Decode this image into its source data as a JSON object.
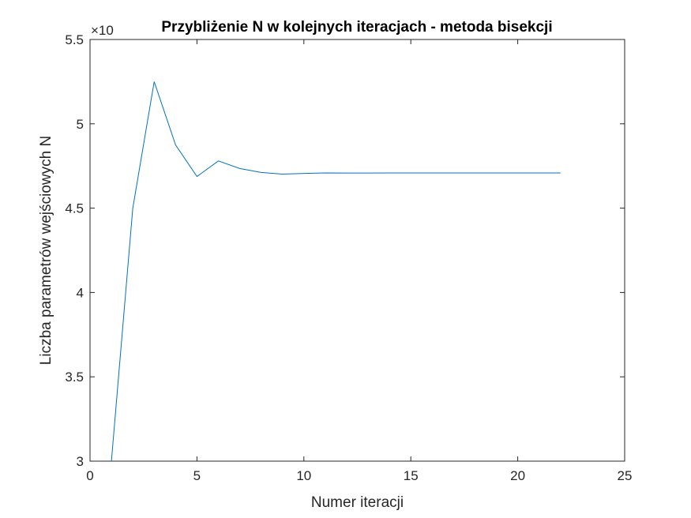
{
  "chart_data": {
    "type": "line",
    "title": "Przybliżenie N w kolejnych iteracjach - metoda bisekcji",
    "xlabel": "Numer iteracji",
    "ylabel": "Liczba parametrów wejściowych N",
    "y_multiplier_label": "×10",
    "xlim": [
      0,
      25
    ],
    "ylim": [
      3,
      5.5
    ],
    "xticks": [
      0,
      5,
      10,
      15,
      20,
      25
    ],
    "xtick_labels": [
      "0",
      "5",
      "10",
      "15",
      "20",
      "25"
    ],
    "yticks": [
      3,
      3.5,
      4,
      4.5,
      5,
      5.5
    ],
    "ytick_labels": [
      "3",
      "3.5",
      "4",
      "4.5",
      "5",
      "5.5"
    ],
    "grid": false,
    "series": [
      {
        "color": "#0072BD",
        "x": [
          1,
          2,
          3,
          4,
          5,
          6,
          7,
          8,
          9,
          10,
          11,
          12,
          13,
          14,
          15,
          16,
          17,
          18,
          19,
          20,
          21,
          22
        ],
        "y": [
          3.0,
          4.5,
          5.25,
          4.875,
          4.6875,
          4.78,
          4.735,
          4.712,
          4.702,
          4.706,
          4.709,
          4.708,
          4.708,
          4.709,
          4.709,
          4.709,
          4.709,
          4.709,
          4.709,
          4.709,
          4.709,
          4.709
        ]
      }
    ]
  }
}
